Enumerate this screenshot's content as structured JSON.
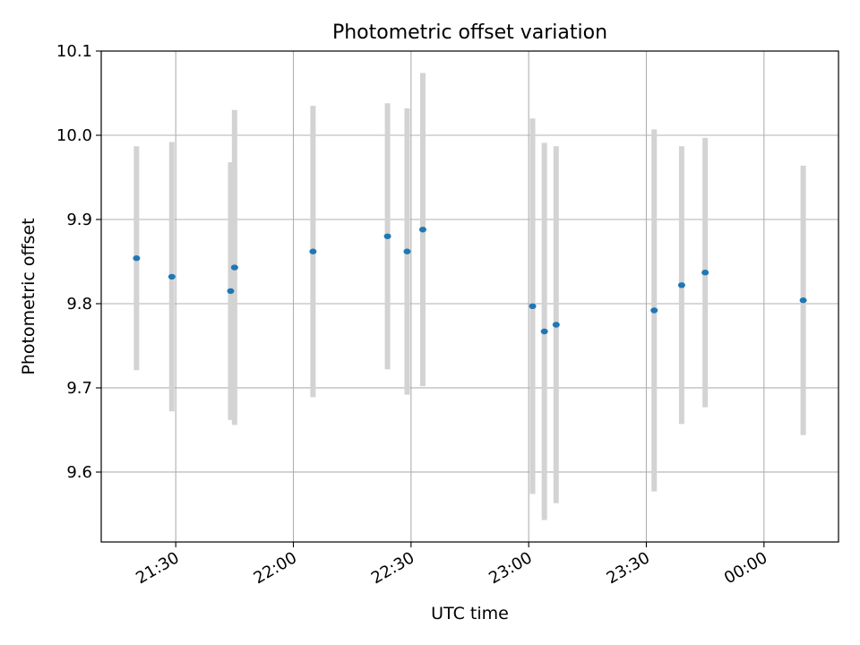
{
  "chart_data": {
    "type": "scatter",
    "title": "Photometric offset variation",
    "xlabel": "UTC time",
    "ylabel": "Photometric offset",
    "ylim": [
      9.517,
      10.1
    ],
    "xlim": [
      "21:11",
      "00:19"
    ],
    "grid": true,
    "x_ticks": [
      "21:30",
      "22:00",
      "22:30",
      "23:00",
      "23:30",
      "00:00"
    ],
    "y_ticks": [
      "9.6",
      "9.7",
      "9.8",
      "9.9",
      "10.0",
      "10.1"
    ],
    "error_bar_color": "#d3d3d3",
    "marker_color": "#1f77b4",
    "points": [
      {
        "x": "21:20",
        "y": 9.854,
        "err": 0.133
      },
      {
        "x": "21:29",
        "y": 9.832,
        "err": 0.16
      },
      {
        "x": "21:44",
        "y": 9.815,
        "err": 0.153
      },
      {
        "x": "21:45",
        "y": 9.843,
        "err": 0.187
      },
      {
        "x": "22:05",
        "y": 9.862,
        "err": 0.173
      },
      {
        "x": "22:24",
        "y": 9.88,
        "err": 0.158
      },
      {
        "x": "22:29",
        "y": 9.862,
        "err": 0.17
      },
      {
        "x": "22:33",
        "y": 9.888,
        "err": 0.186
      },
      {
        "x": "23:01",
        "y": 9.797,
        "err": 0.223
      },
      {
        "x": "23:04",
        "y": 9.767,
        "err": 0.224
      },
      {
        "x": "23:07",
        "y": 9.775,
        "err": 0.212
      },
      {
        "x": "23:32",
        "y": 9.792,
        "err": 0.215
      },
      {
        "x": "23:39",
        "y": 9.822,
        "err": 0.165
      },
      {
        "x": "23:45",
        "y": 9.837,
        "err": 0.16
      },
      {
        "x": "00:10",
        "y": 9.804,
        "err": 0.16
      }
    ]
  }
}
